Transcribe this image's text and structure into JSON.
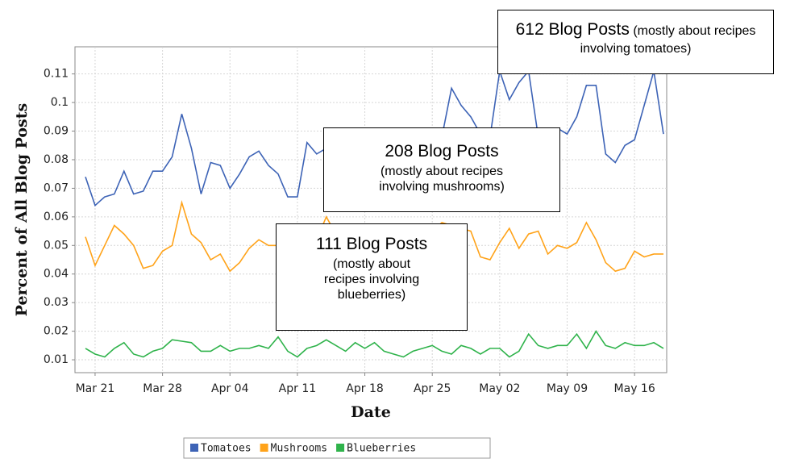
{
  "chart_data": {
    "type": "line",
    "x_label": "Date",
    "y_label": "Percent of All Blog Posts",
    "categories": [
      null,
      "Mar 21",
      null,
      null,
      null,
      null,
      null,
      null,
      "Mar 28",
      null,
      null,
      null,
      null,
      null,
      null,
      "Apr 04",
      null,
      null,
      null,
      null,
      null,
      null,
      "Apr 11",
      null,
      null,
      null,
      null,
      null,
      null,
      "Apr 18",
      null,
      null,
      null,
      null,
      null,
      null,
      "Apr 25",
      null,
      null,
      null,
      null,
      null,
      null,
      "May 02",
      null,
      null,
      null,
      null,
      null,
      null,
      "May 09",
      null,
      null,
      null,
      null,
      null,
      null,
      "May 16",
      null,
      null,
      null
    ],
    "series": [
      {
        "name": "Tomatoes",
        "color": "#3d63b6",
        "values": [
          0.074,
          0.064,
          0.067,
          0.068,
          0.076,
          0.068,
          0.069,
          0.076,
          0.076,
          0.081,
          0.096,
          0.084,
          0.068,
          0.079,
          0.078,
          0.07,
          0.075,
          0.081,
          0.083,
          0.078,
          0.075,
          0.067,
          0.067,
          0.086,
          0.082,
          0.084,
          0.083,
          0.087,
          0.085,
          0.082,
          0.086,
          0.088,
          0.084,
          0.083,
          0.086,
          0.089,
          0.09,
          0.088,
          0.105,
          0.099,
          0.095,
          0.089,
          0.088,
          0.111,
          0.101,
          0.107,
          0.111,
          0.088,
          0.087,
          0.091,
          0.089,
          0.095,
          0.106,
          0.106,
          0.082,
          0.079,
          0.085,
          0.087,
          0.099,
          0.111,
          0.089
        ]
      },
      {
        "name": "Mushrooms",
        "color": "#ffa31a",
        "values": [
          0.053,
          0.043,
          0.05,
          0.057,
          0.054,
          0.05,
          0.042,
          0.043,
          0.048,
          0.05,
          0.065,
          0.054,
          0.051,
          0.045,
          0.047,
          0.041,
          0.044,
          0.049,
          0.052,
          0.05,
          0.05,
          0.051,
          0.053,
          0.05,
          0.052,
          0.06,
          0.054,
          0.052,
          0.05,
          0.053,
          0.051,
          0.052,
          0.054,
          0.05,
          0.052,
          0.053,
          0.055,
          0.058,
          0.057,
          0.056,
          0.055,
          0.046,
          0.045,
          0.051,
          0.056,
          0.049,
          0.054,
          0.055,
          0.047,
          0.05,
          0.049,
          0.051,
          0.058,
          0.052,
          0.044,
          0.041,
          0.042,
          0.048,
          0.046,
          0.047,
          0.047
        ]
      },
      {
        "name": "Blueberries",
        "color": "#2fb34b",
        "values": [
          0.014,
          0.012,
          0.011,
          0.014,
          0.016,
          0.012,
          0.011,
          0.013,
          0.014,
          0.017,
          0.0165,
          0.016,
          0.013,
          0.013,
          0.015,
          0.013,
          0.014,
          0.014,
          0.015,
          0.014,
          0.018,
          0.013,
          0.011,
          0.014,
          0.015,
          0.017,
          0.015,
          0.013,
          0.016,
          0.014,
          0.016,
          0.013,
          0.012,
          0.011,
          0.013,
          0.014,
          0.015,
          0.013,
          0.012,
          0.015,
          0.014,
          0.012,
          0.014,
          0.014,
          0.011,
          0.013,
          0.019,
          0.015,
          0.014,
          0.015,
          0.015,
          0.019,
          0.014,
          0.02,
          0.015,
          0.014,
          0.016,
          0.015,
          0.015,
          0.016,
          0.014
        ]
      }
    ],
    "ylim": [
      0.0055,
      0.1195
    ],
    "yticks": [
      0.01,
      0.02,
      0.03,
      0.04,
      0.05,
      0.06,
      0.07,
      0.08,
      0.09,
      0.1,
      0.11
    ],
    "grid": true,
    "legend": "bottom",
    "annotations": [
      {
        "heading": "612 Blog Posts",
        "text": "(mostly about recipes involving tomatoes)"
      },
      {
        "heading": "208 Blog Posts",
        "text": "(mostly about recipes involving mushrooms)"
      },
      {
        "heading": "111 Blog Posts",
        "text": "(mostly about recipes involving blueberries)"
      }
    ]
  }
}
